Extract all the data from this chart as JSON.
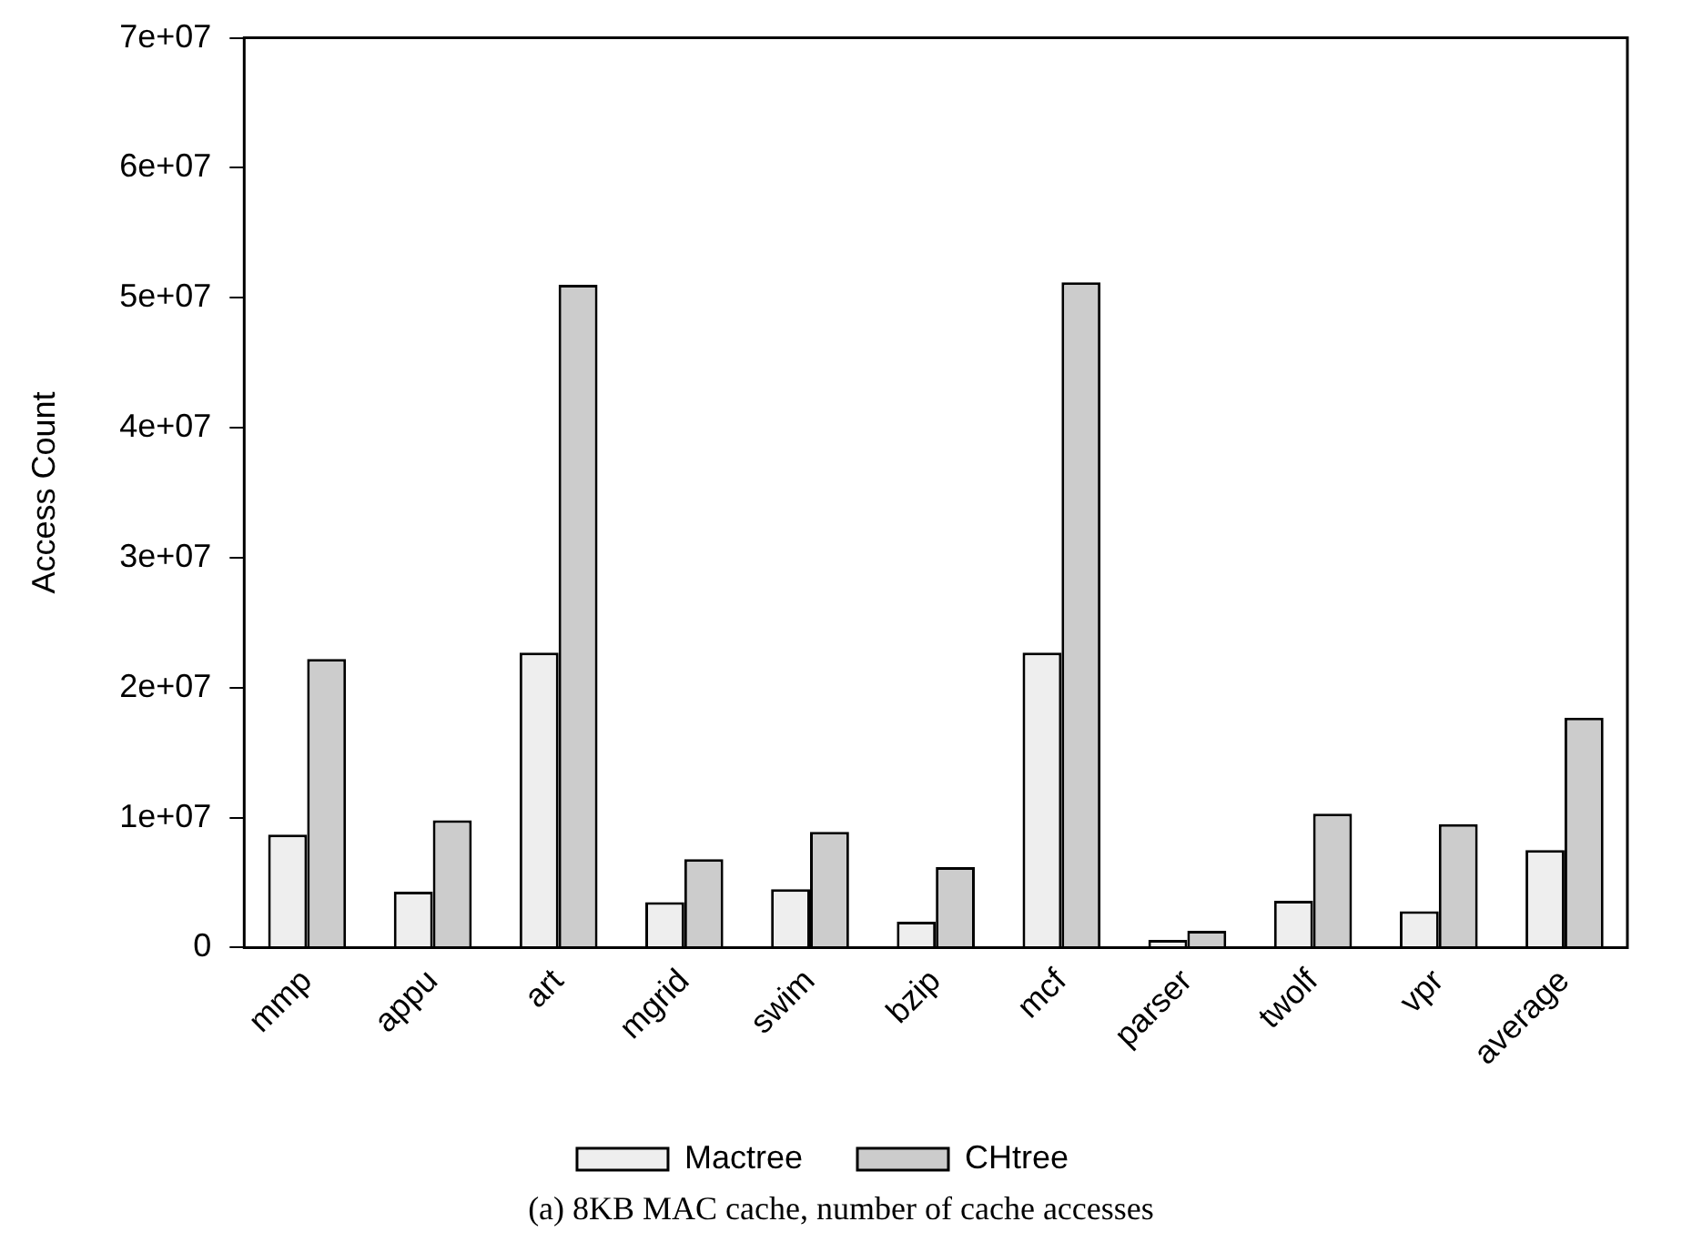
{
  "chart_data": {
    "type": "bar",
    "ylabel": "Access Count",
    "annotations": [
      "(a) 8KB MAC cache, number of cache accesses"
    ],
    "categories": [
      "mmp",
      "appu",
      "art",
      "mgrid",
      "swim",
      "bzip",
      "mcf",
      "parser",
      "twolf",
      "vpr",
      "average"
    ],
    "series": [
      {
        "name": "Mactree",
        "color": "#eeeeee",
        "values": [
          8700000,
          4300000,
          22700000,
          3500000,
          4500000,
          2000000,
          22700000,
          600000,
          3600000,
          2800000,
          7500000
        ]
      },
      {
        "name": "CHtree",
        "color": "#cccccc",
        "values": [
          22200000,
          9800000,
          51000000,
          6800000,
          8900000,
          6200000,
          51200000,
          1300000,
          10300000,
          9500000,
          17700000
        ]
      }
    ],
    "ylim": [
      0,
      70000000
    ],
    "yticks": [
      {
        "value": 0,
        "label": "0"
      },
      {
        "value": 10000000,
        "label": "1e+07"
      },
      {
        "value": 20000000,
        "label": "2e+07"
      },
      {
        "value": 30000000,
        "label": "3e+07"
      },
      {
        "value": 40000000,
        "label": "4e+07"
      },
      {
        "value": 50000000,
        "label": "5e+07"
      },
      {
        "value": 60000000,
        "label": "6e+07"
      },
      {
        "value": 70000000,
        "label": "7e+07"
      }
    ],
    "grid": false,
    "legend": "bottom"
  }
}
